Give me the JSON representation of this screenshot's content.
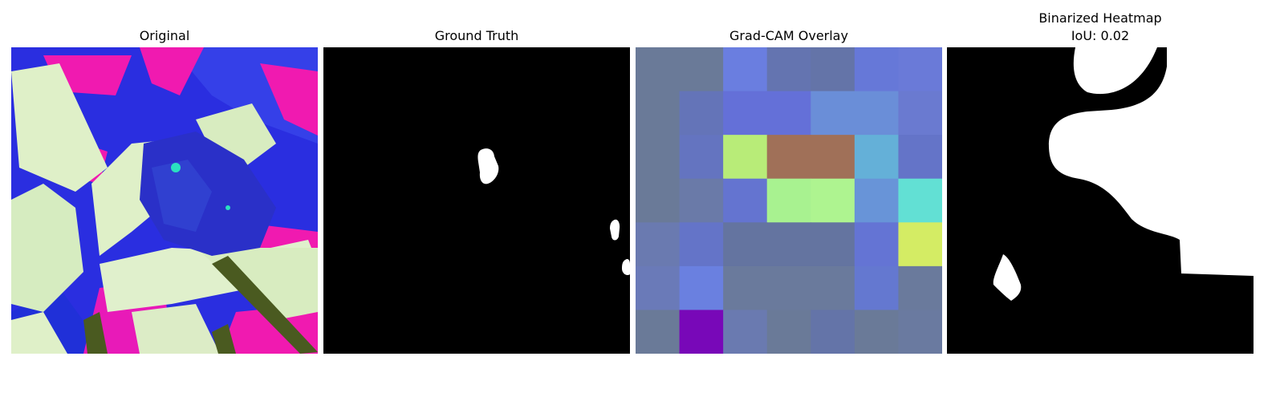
{
  "panels": [
    {
      "title": "Original"
    },
    {
      "title": "Ground Truth"
    },
    {
      "title": "Grad-CAM Overlay"
    },
    {
      "title": "Binarized Heatmap",
      "subtitle": "IoU: 0.02"
    }
  ],
  "colors": {
    "leaf_light": "#dff0c8",
    "leaf_mid": "#c8e6a8",
    "blue": "#2a2ee0",
    "magenta": "#f01ab0",
    "dark_olive": "#4a5a20",
    "mask_fg": "#ffffff",
    "mask_bg": "#000000"
  },
  "gradcam_grid": [
    [
      "#6a7a98",
      "#6a7a98",
      "#6a7ee0",
      "#6474b0",
      "#6474a8",
      "#6678d8",
      "#6a7ad8"
    ],
    [
      "#6a7a98",
      "#6474b8",
      "#6470d8",
      "#6470d8",
      "#6a8ed8",
      "#6a8ed8",
      "#6a7ad0"
    ],
    [
      "#6a7a98",
      "#6474c0",
      "#b8ec78",
      "#a07058",
      "#a07058",
      "#64b0d8",
      "#6474c8"
    ],
    [
      "#6a7a98",
      "#6a7aa8",
      "#6474d0",
      "#a8f290",
      "#aef490",
      "#6894d8",
      "#62e0d4"
    ],
    [
      "#6a7ab0",
      "#6474c8",
      "#6474a0",
      "#6474a0",
      "#6474a0",
      "#6474d4",
      "#d4ec64"
    ],
    [
      "#6a7ab8",
      "#6a80e0",
      "#6a7a9c",
      "#6a7a9c",
      "#6a7a9c",
      "#6478d0",
      "#6a7a9c"
    ],
    [
      "#6a7a98",
      "#7808b8",
      "#6a7ab0",
      "#6a7a98",
      "#6474a8",
      "#6a7a98",
      "#6a7aa0"
    ]
  ]
}
